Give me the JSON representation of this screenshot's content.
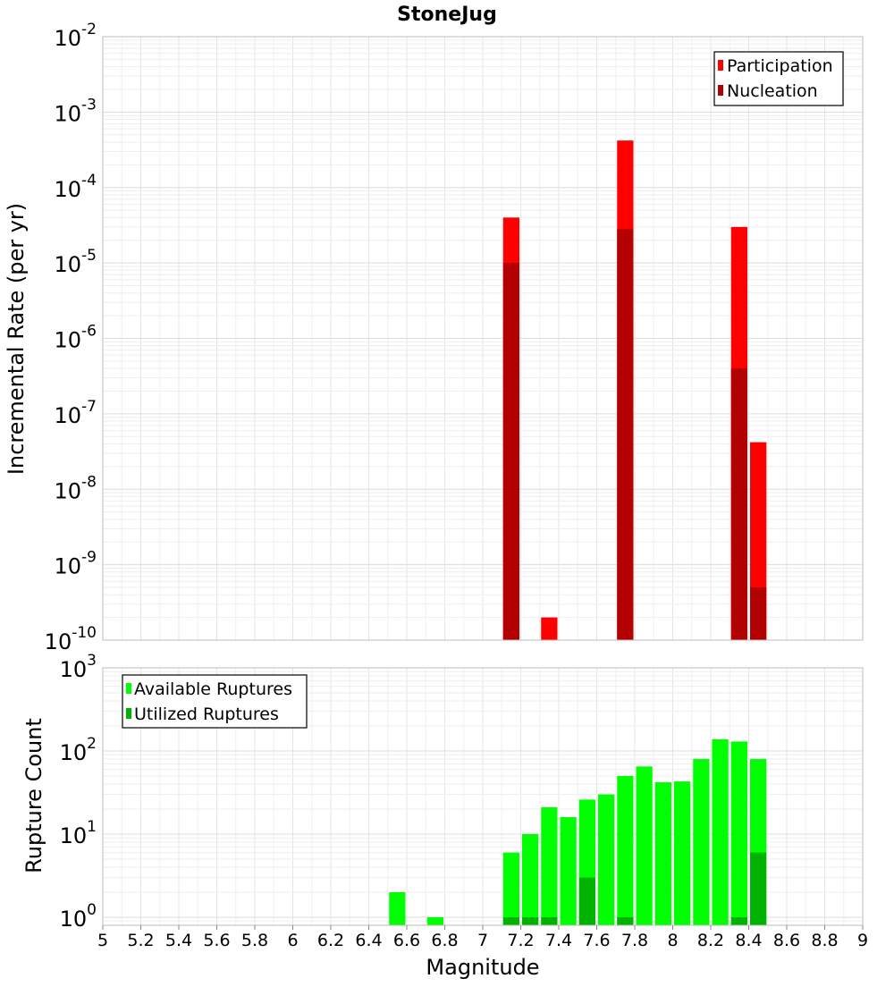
{
  "chart_data": [
    {
      "type": "bar",
      "title": "StoneJug",
      "xlabel": "",
      "ylabel": "Incremental Rate (per yr)",
      "yscale": "log",
      "ylim": [
        1e-10,
        0.01
      ],
      "xlim": [
        5,
        9
      ],
      "y_ticks": [
        {
          "base": "10",
          "exp": "-10",
          "value": 1e-10
        },
        {
          "base": "10",
          "exp": "-9",
          "value": 1e-09
        },
        {
          "base": "10",
          "exp": "-8",
          "value": 1e-08
        },
        {
          "base": "10",
          "exp": "-7",
          "value": 1e-07
        },
        {
          "base": "10",
          "exp": "-6",
          "value": 1e-06
        },
        {
          "base": "10",
          "exp": "-5",
          "value": 1e-05
        },
        {
          "base": "10",
          "exp": "-4",
          "value": 0.0001
        },
        {
          "base": "10",
          "exp": "-3",
          "value": 0.001
        },
        {
          "base": "10",
          "exp": "-2",
          "value": 0.01
        }
      ],
      "grid": true,
      "legend_position": "top-right",
      "series": [
        {
          "name": "Participation",
          "color": "#ff0000",
          "points": [
            {
              "x": 7.15,
              "y": 4e-05
            },
            {
              "x": 7.35,
              "y": 2e-10
            },
            {
              "x": 7.75,
              "y": 0.00042
            },
            {
              "x": 8.35,
              "y": 3e-05
            },
            {
              "x": 8.45,
              "y": 4.2e-08
            }
          ]
        },
        {
          "name": "Nucleation",
          "color": "#b30000",
          "points": [
            {
              "x": 7.15,
              "y": 1e-05
            },
            {
              "x": 7.75,
              "y": 2.8e-05
            },
            {
              "x": 8.35,
              "y": 4e-07
            },
            {
              "x": 8.45,
              "y": 5e-10
            }
          ]
        }
      ]
    },
    {
      "type": "bar",
      "title": "",
      "xlabel": "Magnitude",
      "ylabel": "Rupture Count",
      "yscale": "log",
      "ylim": [
        0.8,
        1000
      ],
      "xlim": [
        5,
        9
      ],
      "x_ticks": [
        "5",
        "5.2",
        "5.4",
        "5.6",
        "5.8",
        "6",
        "6.2",
        "6.4",
        "6.6",
        "6.8",
        "7",
        "7.2",
        "7.4",
        "7.6",
        "7.8",
        "8",
        "8.2",
        "8.4",
        "8.6",
        "8.8",
        "9"
      ],
      "y_ticks": [
        {
          "base": "10",
          "exp": "0",
          "value": 1
        },
        {
          "base": "10",
          "exp": "1",
          "value": 10
        },
        {
          "base": "10",
          "exp": "2",
          "value": 100
        },
        {
          "base": "10",
          "exp": "3",
          "value": 1000
        }
      ],
      "grid": true,
      "legend_position": "top-left",
      "series": [
        {
          "name": "Available Ruptures",
          "color": "#00ff00",
          "points": [
            {
              "x": 6.55,
              "y": 2
            },
            {
              "x": 6.75,
              "y": 1
            },
            {
              "x": 7.15,
              "y": 6
            },
            {
              "x": 7.25,
              "y": 10
            },
            {
              "x": 7.35,
              "y": 21
            },
            {
              "x": 7.45,
              "y": 16
            },
            {
              "x": 7.55,
              "y": 26
            },
            {
              "x": 7.65,
              "y": 30
            },
            {
              "x": 7.75,
              "y": 50
            },
            {
              "x": 7.85,
              "y": 65
            },
            {
              "x": 7.95,
              "y": 42
            },
            {
              "x": 8.05,
              "y": 43
            },
            {
              "x": 8.15,
              "y": 80
            },
            {
              "x": 8.25,
              "y": 138
            },
            {
              "x": 8.35,
              "y": 130
            },
            {
              "x": 8.45,
              "y": 80
            }
          ]
        },
        {
          "name": "Utilized Ruptures",
          "color": "#00b300",
          "points": [
            {
              "x": 7.15,
              "y": 1
            },
            {
              "x": 7.25,
              "y": 1
            },
            {
              "x": 7.35,
              "y": 1
            },
            {
              "x": 7.55,
              "y": 3
            },
            {
              "x": 7.75,
              "y": 1
            },
            {
              "x": 8.35,
              "y": 1
            },
            {
              "x": 8.45,
              "y": 6
            }
          ]
        }
      ]
    }
  ]
}
